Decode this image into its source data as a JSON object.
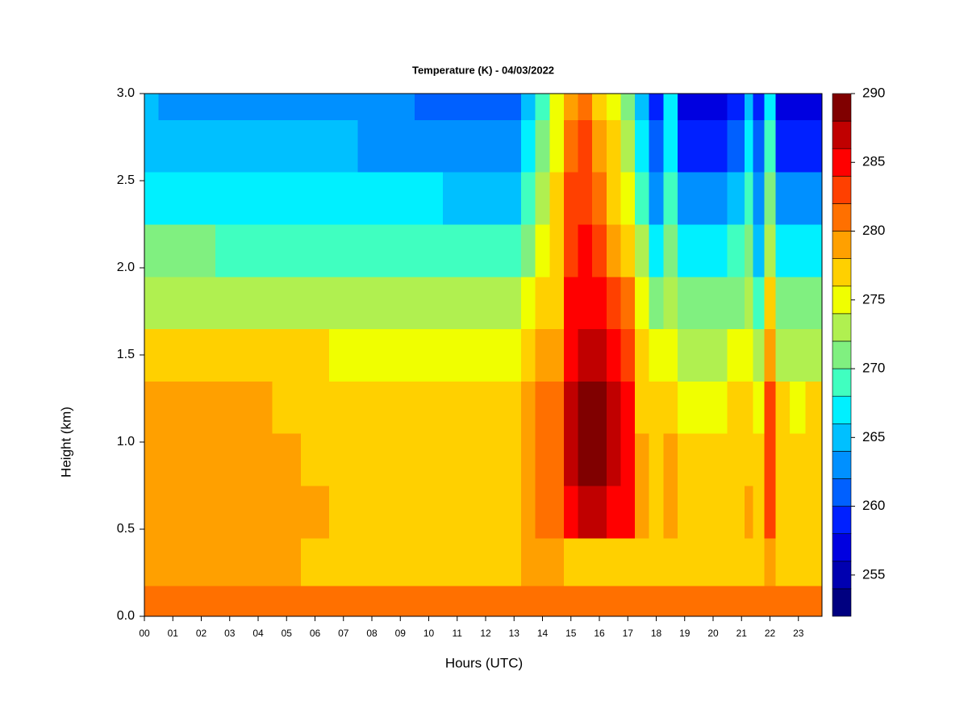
{
  "chart_data": {
    "type": "heatmap",
    "title": "Temperature (K) - 04/03/2022",
    "xlabel": "Hours (UTC)",
    "ylabel": "Height (km)",
    "xlim": [
      0,
      23.83
    ],
    "ylim": [
      0,
      3
    ],
    "xticks": [
      {
        "value": 0,
        "label": "00"
      },
      {
        "value": 1,
        "label": "01"
      },
      {
        "value": 2,
        "label": "02"
      },
      {
        "value": 3,
        "label": "03"
      },
      {
        "value": 4,
        "label": "04"
      },
      {
        "value": 5,
        "label": "05"
      },
      {
        "value": 6,
        "label": "06"
      },
      {
        "value": 7,
        "label": "07"
      },
      {
        "value": 8,
        "label": "08"
      },
      {
        "value": 9,
        "label": "09"
      },
      {
        "value": 10,
        "label": "10"
      },
      {
        "value": 11,
        "label": "11"
      },
      {
        "value": 12,
        "label": "12"
      },
      {
        "value": 13,
        "label": "13"
      },
      {
        "value": 14,
        "label": "14"
      },
      {
        "value": 15,
        "label": "15"
      },
      {
        "value": 16,
        "label": "16"
      },
      {
        "value": 17,
        "label": "17"
      },
      {
        "value": 18,
        "label": "18"
      },
      {
        "value": 19,
        "label": "19"
      },
      {
        "value": 20,
        "label": "20"
      },
      {
        "value": 21,
        "label": "21"
      },
      {
        "value": 22,
        "label": "22"
      },
      {
        "value": 23,
        "label": "23"
      }
    ],
    "yticks": [
      {
        "value": 0,
        "label": "0.0"
      },
      {
        "value": 0.5,
        "label": "0.5"
      },
      {
        "value": 1,
        "label": "1.0"
      },
      {
        "value": 1.5,
        "label": "1.5"
      },
      {
        "value": 2,
        "label": "2.0"
      },
      {
        "value": 2.5,
        "label": "2.5"
      },
      {
        "value": 3,
        "label": "3.0"
      }
    ],
    "levels": [
      252,
      254,
      256,
      258,
      260,
      262,
      264,
      266,
      268,
      270,
      272,
      274,
      276,
      278,
      280,
      282,
      284,
      286,
      288,
      290
    ],
    "colors": [
      "#000080",
      "#0000b0",
      "#0000e0",
      "#0020ff",
      "#0060ff",
      "#0090ff",
      "#00c0ff",
      "#00f0ff",
      "#40ffc0",
      "#80f080",
      "#b0f050",
      "#f0ff00",
      "#ffd000",
      "#ffa000",
      "#ff7000",
      "#ff4000",
      "#ff0000",
      "#c00000",
      "#800000"
    ],
    "colorbar_ticks": [
      255,
      260,
      265,
      270,
      275,
      280,
      285,
      290
    ],
    "x": [
      0,
      1,
      2,
      3,
      4,
      5,
      6,
      7,
      8,
      9,
      10,
      11,
      12,
      13,
      13.5,
      14,
      14.5,
      15,
      15.5,
      16,
      16.5,
      17,
      17.5,
      18,
      18.5,
      19,
      20,
      21,
      21.2,
      21.6,
      22,
      22.4,
      23,
      23.5
    ],
    "y": [
      0.05,
      0.3,
      0.6,
      0.9,
      1.2,
      1.5,
      1.8,
      2.1,
      2.4,
      2.7,
      3.0
    ],
    "z": [
      [
        281,
        280,
        280,
        280,
        280,
        280,
        280,
        280,
        280,
        280,
        280,
        280,
        280,
        280,
        280,
        280,
        280,
        280,
        280,
        280,
        280,
        280,
        280,
        280,
        280,
        280,
        280,
        280,
        280,
        280,
        280,
        280,
        280,
        281
      ],
      [
        278,
        278,
        278,
        278,
        278,
        278,
        277,
        277,
        277,
        277,
        277,
        277,
        277,
        277,
        278,
        278,
        278,
        277,
        277,
        277,
        277,
        277,
        277,
        277,
        277,
        277,
        277,
        277,
        277,
        277,
        278,
        277,
        277,
        277
      ],
      [
        279,
        279,
        279,
        279,
        279,
        279,
        278,
        277,
        277,
        277,
        277,
        277,
        277,
        277,
        278,
        280,
        280,
        285,
        286,
        286,
        285,
        284,
        279,
        277,
        279,
        276,
        276,
        277,
        278,
        276,
        282,
        276,
        277,
        277
      ],
      [
        279,
        279,
        279,
        279,
        279,
        279,
        277,
        277,
        277,
        277,
        277,
        277,
        277,
        277,
        279,
        281,
        281,
        287,
        288.5,
        288,
        287,
        284,
        278,
        277,
        278,
        276,
        276,
        276,
        277,
        276,
        283,
        276,
        276,
        277
      ],
      [
        278,
        278,
        278,
        278,
        278,
        277,
        277,
        277,
        277,
        277,
        277,
        277,
        277,
        277,
        279,
        281,
        281,
        287,
        288.5,
        288,
        286,
        284,
        277,
        276,
        277,
        275,
        275,
        276,
        276,
        275,
        282,
        276,
        275,
        276
      ],
      [
        276,
        276,
        276,
        276,
        276,
        276,
        276,
        275,
        275,
        275,
        275,
        275,
        275,
        275,
        277,
        279,
        279,
        285,
        286,
        286,
        285,
        283,
        276,
        274,
        275,
        273,
        273,
        274,
        275,
        272,
        279,
        273,
        273,
        273
      ],
      [
        273,
        273,
        273,
        273,
        273,
        273,
        273,
        273,
        273,
        272,
        272,
        272,
        272,
        272,
        274,
        277,
        277,
        284,
        285,
        284,
        282,
        280,
        274,
        271,
        273,
        270,
        270,
        271,
        273,
        269,
        276,
        270,
        270,
        270
      ],
      [
        270,
        270,
        270,
        269,
        269,
        269,
        269,
        269,
        269,
        269,
        269,
        269,
        269,
        269,
        271,
        275,
        276,
        283,
        284,
        282,
        279,
        277,
        272,
        267,
        270,
        266,
        266,
        268,
        271,
        265,
        273,
        266,
        266,
        266
      ],
      [
        267,
        267,
        267,
        266,
        266,
        266,
        266,
        266,
        266,
        266,
        266,
        265,
        265,
        265,
        268,
        272,
        276,
        282,
        283,
        280,
        277,
        275,
        269,
        263,
        268,
        262,
        262,
        264,
        268,
        262,
        270,
        262,
        262,
        262
      ],
      [
        265,
        265,
        264,
        264,
        264,
        264,
        264,
        264,
        263,
        263,
        263,
        262,
        262,
        262,
        266,
        270,
        275,
        281,
        282,
        278,
        276,
        272,
        266,
        260,
        267,
        259,
        259,
        261,
        266,
        260,
        268,
        259,
        259,
        259
      ],
      [
        264,
        263,
        263,
        263,
        263,
        262,
        262,
        262,
        262,
        262,
        261,
        261,
        261,
        261,
        265,
        268,
        275,
        279,
        280,
        277,
        275,
        270,
        264,
        259,
        266,
        257,
        257,
        259,
        264,
        258,
        267,
        257,
        257,
        256
      ]
    ]
  }
}
